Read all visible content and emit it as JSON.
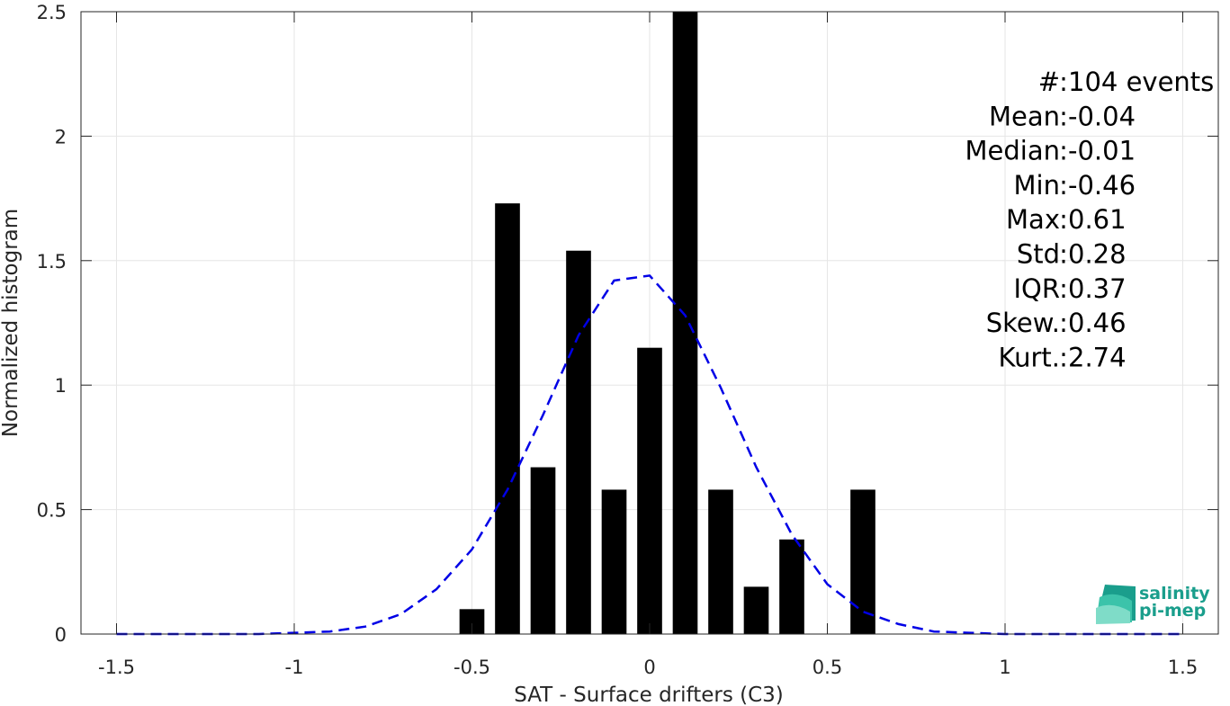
{
  "chart_data": {
    "type": "bar",
    "xlabel": "SAT - Surface drifters (C3)",
    "ylabel": "Normalized histogram",
    "xlim": [
      -1.6,
      1.6
    ],
    "ylim": [
      0,
      2.5
    ],
    "xticks": [
      -1.5,
      -1,
      -0.5,
      0,
      0.5,
      1,
      1.5
    ],
    "xtick_labels": [
      "-1.5",
      "-1",
      "-0.5",
      "0",
      "0.5",
      "1",
      "1.5"
    ],
    "yticks": [
      0,
      0.5,
      1,
      1.5,
      2,
      2.5
    ],
    "ytick_labels": [
      "0",
      "0.5",
      "1",
      "1.5",
      "2",
      "2.5"
    ],
    "grid": true,
    "bar_color": "#000000",
    "bar_width": 0.07,
    "bars": [
      {
        "x": -0.5,
        "value": 0.1
      },
      {
        "x": -0.4,
        "value": 1.73
      },
      {
        "x": -0.3,
        "value": 0.67
      },
      {
        "x": -0.2,
        "value": 1.54
      },
      {
        "x": -0.1,
        "value": 0.58
      },
      {
        "x": 0.0,
        "value": 1.15
      },
      {
        "x": 0.1,
        "value": 2.5
      },
      {
        "x": 0.2,
        "value": 0.58
      },
      {
        "x": 0.3,
        "value": 0.19
      },
      {
        "x": 0.4,
        "value": 0.38
      },
      {
        "x": 0.6,
        "value": 0.58
      }
    ],
    "fit_curve": {
      "style": "dashed",
      "color": "#0000e6",
      "x": [
        -1.5,
        -1.4,
        -1.3,
        -1.2,
        -1.1,
        -1.0,
        -0.9,
        -0.8,
        -0.7,
        -0.6,
        -0.5,
        -0.4,
        -0.3,
        -0.2,
        -0.1,
        0.0,
        0.1,
        0.2,
        0.3,
        0.4,
        0.5,
        0.6,
        0.7,
        0.8,
        0.9,
        1.0,
        1.1,
        1.2,
        1.3,
        1.4,
        1.5
      ],
      "y": [
        0.0,
        0.0,
        0.0,
        0.0,
        0.0,
        0.005,
        0.01,
        0.03,
        0.08,
        0.18,
        0.34,
        0.58,
        0.88,
        1.2,
        1.42,
        1.44,
        1.28,
        0.99,
        0.67,
        0.4,
        0.2,
        0.09,
        0.04,
        0.01,
        0.005,
        0.0,
        0.0,
        0.0,
        0.0,
        0.0,
        0.0
      ]
    },
    "stats": [
      {
        "label": "#  ",
        "value": "104 events"
      },
      {
        "label": "Mean ",
        "value": "-0.04"
      },
      {
        "label": "Median ",
        "value": "-0.01"
      },
      {
        "label": "Min ",
        "value": "-0.46"
      },
      {
        "label": "Max ",
        "value": "0.61"
      },
      {
        "label": "Std ",
        "value": "0.28"
      },
      {
        "label": "IQR ",
        "value": "0.37"
      },
      {
        "label": "Skew. ",
        "value": "0.46"
      },
      {
        "label": "Kurt. ",
        "value": "2.74"
      }
    ]
  },
  "logo": {
    "line1": "salinity",
    "line2": "pi-mep",
    "colors": [
      "#1a9e8c",
      "#3cc3aa",
      "#7fdcc8"
    ]
  }
}
